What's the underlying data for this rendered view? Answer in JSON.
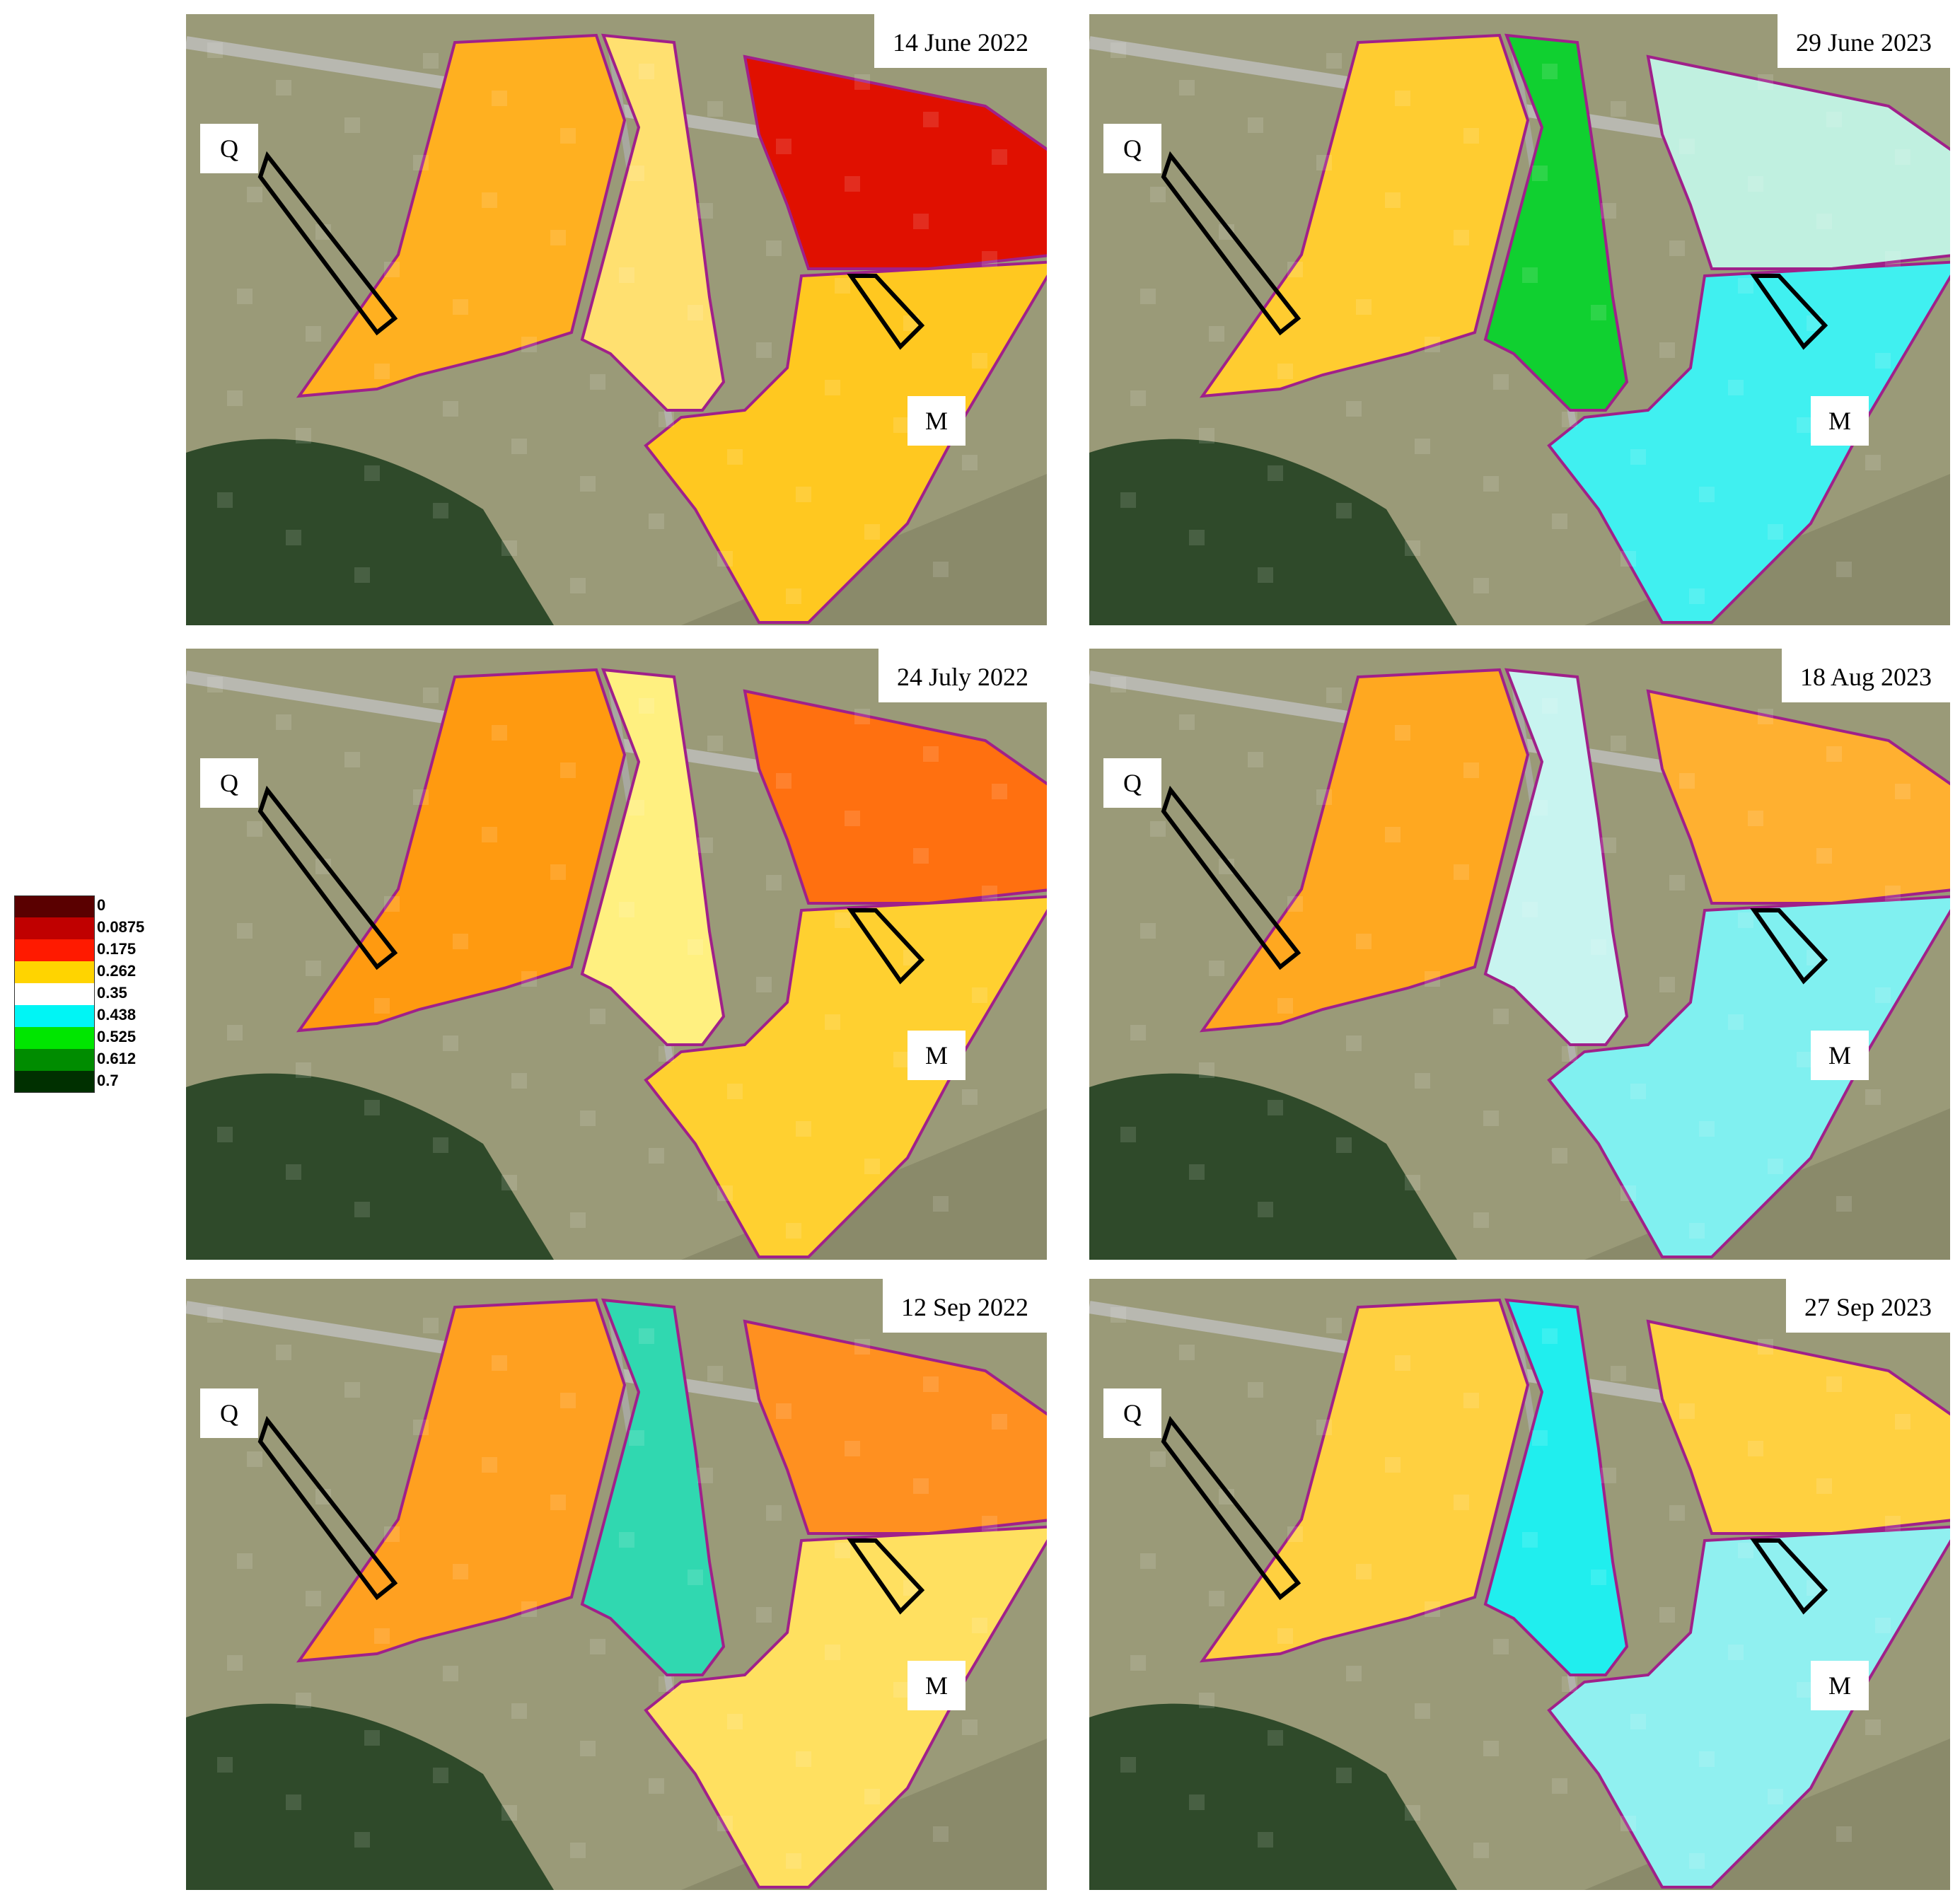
{
  "legend": {
    "items": [
      {
        "label": "0",
        "color": "#5a0000"
      },
      {
        "label": "0.0875",
        "color": "#c00000"
      },
      {
        "label": "0.175",
        "color": "#ff1a00"
      },
      {
        "label": "0.262",
        "color": "#ffd400"
      },
      {
        "label": "0.35",
        "color": "#ffffff"
      },
      {
        "label": "0.438",
        "color": "#00f5f5"
      },
      {
        "label": "0.525",
        "color": "#00e600"
      },
      {
        "label": "0.612",
        "color": "#008c00"
      },
      {
        "label": "0.7",
        "color": "#003000"
      }
    ]
  },
  "panels": [
    {
      "date": "14 June 2022",
      "label_q": "Q",
      "label_m": "M",
      "fields": {
        "q": "#ffb020",
        "c": "#ffe070",
        "n": "#e01000",
        "s": "#ffc820"
      }
    },
    {
      "date": "29 June 2023",
      "label_q": "Q",
      "label_m": "M",
      "fields": {
        "q": "#ffcc30",
        "c": "#10d030",
        "n": "#c0f0e0",
        "s": "#40f0f0"
      }
    },
    {
      "date": "24 July 2022",
      "label_q": "Q",
      "label_m": "M",
      "fields": {
        "q": "#ff9a10",
        "c": "#fff080",
        "n": "#ff7010",
        "s": "#ffd030"
      }
    },
    {
      "date": "18 Aug 2023",
      "label_q": "Q",
      "label_m": "M",
      "fields": {
        "q": "#ffa820",
        "c": "#c8f4f0",
        "n": "#ffb030",
        "s": "#80f0f0"
      }
    },
    {
      "date": "12 Sep 2022",
      "label_q": "Q",
      "label_m": "M",
      "fields": {
        "q": "#ffa020",
        "c": "#30d8b0",
        "n": "#ff9020",
        "s": "#ffe060"
      }
    },
    {
      "date": "27 Sep 2023",
      "label_q": "Q",
      "label_m": "M",
      "fields": {
        "q": "#ffd040",
        "c": "#20eeee",
        "n": "#ffd040",
        "s": "#90f0f0"
      }
    }
  ]
}
